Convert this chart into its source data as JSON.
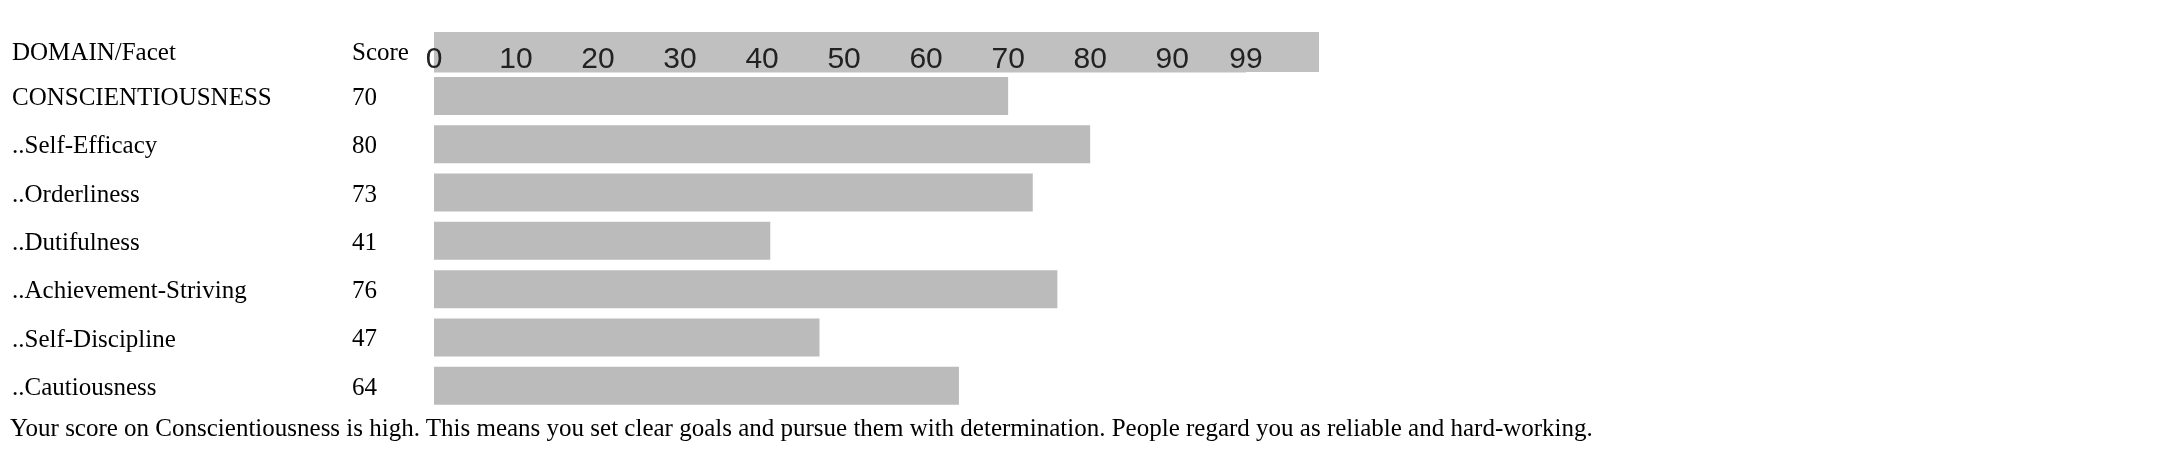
{
  "chart_data": {
    "type": "bar",
    "orientation": "horizontal",
    "ylabel": "DOMAIN/Facet",
    "xlabel": "Score",
    "categories": [
      "CONSCIENTIOUSNESS",
      "..Self-Efficacy",
      "..Orderliness",
      "..Dutifulness",
      "..Achievement-Striving",
      "..Self-Discipline",
      "..Cautiousness"
    ],
    "values": [
      70,
      80,
      73,
      41,
      76,
      47,
      64
    ],
    "color": "#bbbbbb",
    "xlim": [
      0,
      99
    ],
    "xticks": [
      0,
      10,
      20,
      30,
      40,
      50,
      60,
      70,
      80,
      90,
      99
    ],
    "data_labels": true,
    "grid": false,
    "annotations": [
      "Your score on Conscientiousness is high. This means you set clear goals and pursue them with determination. People regard you as reliable and hard-working."
    ]
  }
}
